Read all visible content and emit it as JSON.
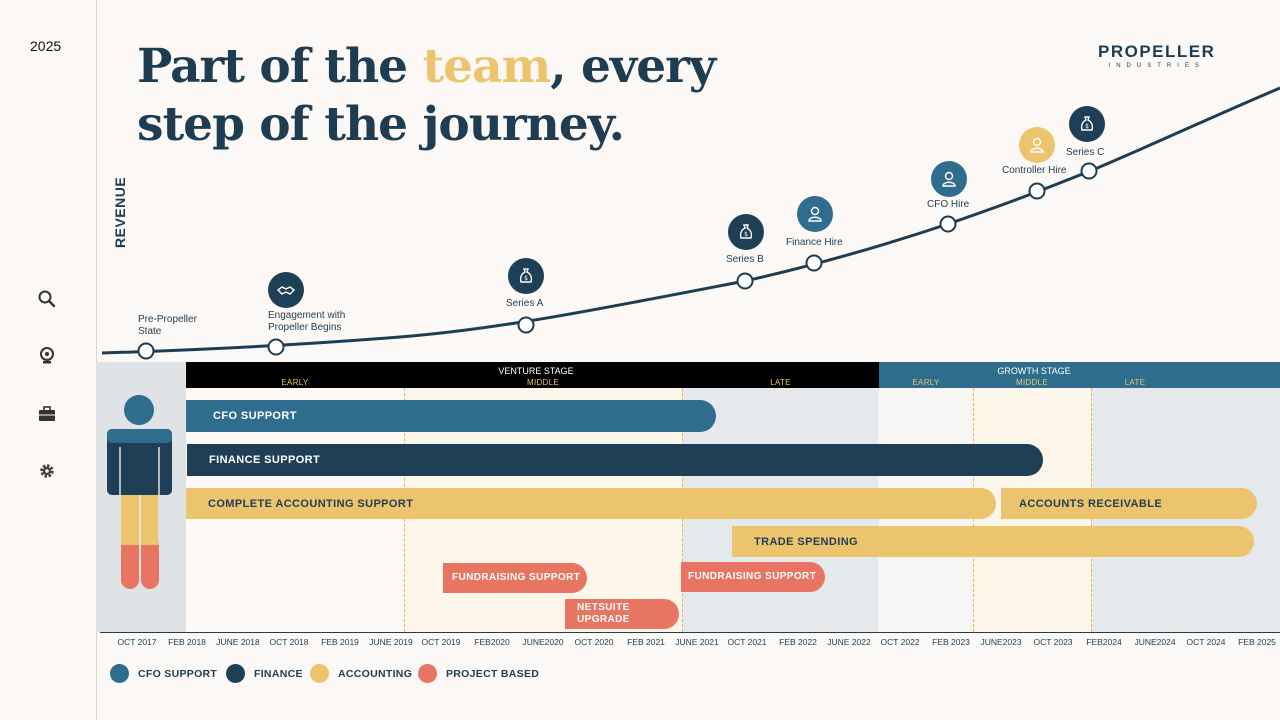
{
  "sidebar": {
    "year": "2025"
  },
  "title": {
    "line1_pre": "Part of the ",
    "line1_accent": "team",
    "line1_post": ", every",
    "line2": "step of the journey."
  },
  "logo": {
    "name": "PROPELLER",
    "sub": "INDUSTRIES"
  },
  "axis_label": "REVENUE",
  "milestones": {
    "pre": "Pre-Propeller\nState",
    "engagement": "Engagement with\nPropeller Begins",
    "series_a": "Series A",
    "series_b": "Series B",
    "finance_hire": "Finance Hire",
    "cfo_hire": "CFO Hire",
    "controller_hire": "Controller Hire",
    "series_c": "Series C"
  },
  "stages": {
    "venture": "VENTURE STAGE",
    "growth": "GROWTH STAGE",
    "venture_sub": [
      "EARLY",
      "MIDDLE",
      "LATE"
    ],
    "growth_sub": [
      "EARLY",
      "MIDDLE",
      "LATE"
    ]
  },
  "bars": {
    "cfo_support": "CFO SUPPORT",
    "finance_support": "FINANCE SUPPORT",
    "complete_accounting": "COMPLETE ACCOUNTING SUPPORT",
    "accounts_receivable": "ACCOUNTS RECEIVABLE",
    "trade_spending": "TRADE SPENDING",
    "fundraising_1": "FUNDRAISING SUPPORT",
    "fundraising_2": "FUNDRAISING SUPPORT",
    "netsuite_line1": "NETSUITE",
    "netsuite_line2": "UPGRADE"
  },
  "timeline_ticks": [
    "OCT 2017",
    "FEB 2018",
    "JUNE 2018",
    "OCT 2018",
    "FEB 2019",
    "JUNE 2019",
    "OCT 2019",
    "FEB2020",
    "JUNE2020",
    "OCT 2020",
    "FEB 2021",
    "JUNE 2021",
    "OCT 2021",
    "FEB 2022",
    "JUNE 2022",
    "OCT 2022",
    "FEB 2023",
    "JUNE2023",
    "OCT 2023",
    "FEB2024",
    "JUNE2024",
    "OCT 2024",
    "FEB 2025"
  ],
  "legend": [
    {
      "label": "CFO SUPPORT",
      "color": "#2e6d8e"
    },
    {
      "label": "FINANCE",
      "color": "#1e3f55"
    },
    {
      "label": "ACCOUNTING",
      "color": "#ecc46e"
    },
    {
      "label": "PROJECT BASED",
      "color": "#e87561"
    }
  ],
  "icons": [
    "search-icon",
    "webcam-icon",
    "briefcase-icon",
    "gear-icon"
  ],
  "colors": {
    "navy": "#1e3f55",
    "blue": "#2e6d8e",
    "gold": "#ecc46e",
    "coral": "#e87561",
    "black": "#000000",
    "growth": "#2e6d8e"
  }
}
